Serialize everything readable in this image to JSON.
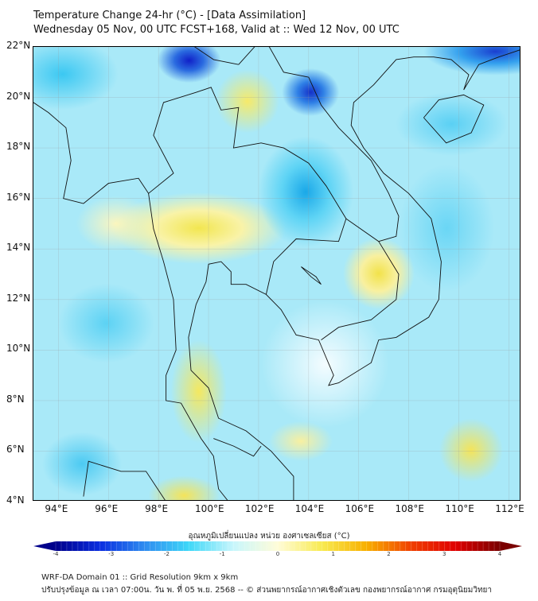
{
  "header": {
    "title": "Temperature Change 24-hr (°C) - [Data Assimilation]",
    "subtitle": "Wednesday 05 Nov, 00 UTC FCST+168, Valid at :: Wed 12 Nov, 00 UTC"
  },
  "map": {
    "lon_labels": [
      "94°E",
      "96°E",
      "98°E",
      "100°E",
      "102°E",
      "104°E",
      "106°E",
      "108°E",
      "110°E",
      "112°E"
    ],
    "lon_values": [
      94,
      96,
      98,
      100,
      102,
      104,
      106,
      108,
      110,
      112
    ],
    "lat_labels": [
      "22°N",
      "20°N",
      "18°N",
      "16°N",
      "14°N",
      "12°N",
      "10°N",
      "8°N",
      "6°N",
      "4°N"
    ],
    "lat_values": [
      22,
      20,
      18,
      16,
      14,
      12,
      10,
      8,
      6,
      4
    ],
    "lon_range": [
      93,
      112.5
    ],
    "lat_range": [
      4,
      22
    ]
  },
  "colorbar": {
    "title": "อุณหภูมิเปลี่ยนแปลง หน่วย องศาเซลเซียส (°C)",
    "tick_labels": [
      "-4",
      "-3",
      "-2",
      "-1",
      "0",
      "1",
      "2",
      "3",
      "4"
    ],
    "range": [
      -4,
      4
    ],
    "colors": [
      "#00008b",
      "#0a2ee0",
      "#2f8cf0",
      "#3fd8f8",
      "#c8f6fc",
      "#fffcd8",
      "#f8ea50",
      "#f8b000",
      "#f04000",
      "#e00000",
      "#7a0000"
    ]
  },
  "footer": {
    "line1": "WRF-DA Domain 01 :: Grid Resolution 9km x 9km",
    "line2": "ปรับปรุงข้อมูล ณ เวลา 07:00น. วัน พ. ที่ 05 พ.ย. 2568 -- © ส่วนพยากรณ์อากาศเชิงตัวเลข กองพยากรณ์อากาศ กรมอุตุนิยมวิทยา"
  }
}
